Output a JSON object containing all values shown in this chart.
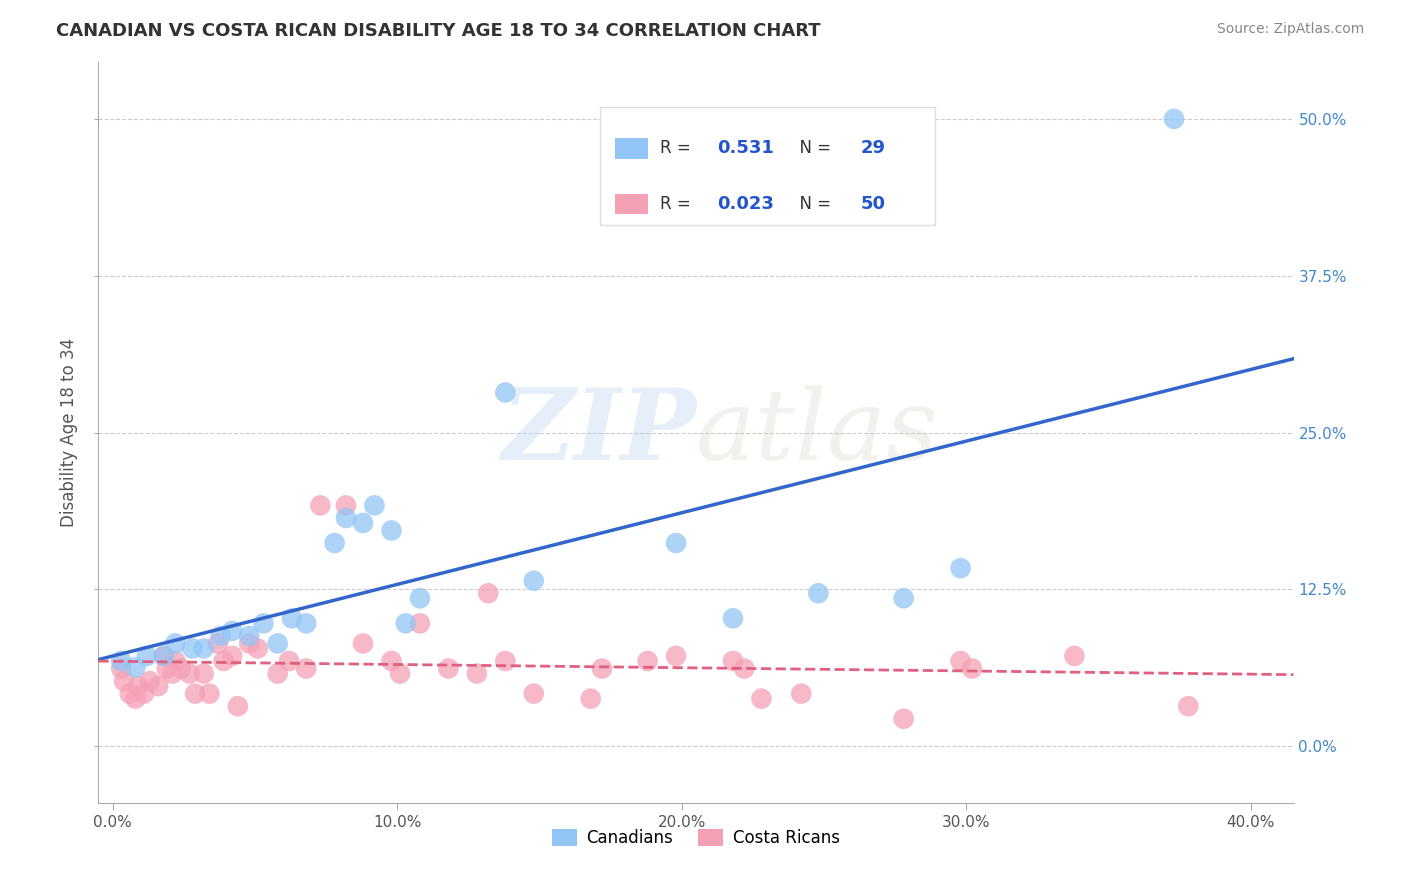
{
  "title": "CANADIAN VS COSTA RICAN DISABILITY AGE 18 TO 34 CORRELATION CHART",
  "source": "Source: ZipAtlas.com",
  "ylabel": "Disability Age 18 to 34",
  "xlabel_ticks": [
    "0.0%",
    "10.0%",
    "20.0%",
    "30.0%",
    "40.0%"
  ],
  "xlabel_vals": [
    0.0,
    0.1,
    0.2,
    0.3,
    0.4
  ],
  "ylabel_ticks": [
    "0.0%",
    "12.5%",
    "25.0%",
    "37.5%",
    "50.0%"
  ],
  "ylabel_vals": [
    0.0,
    0.125,
    0.25,
    0.375,
    0.5
  ],
  "xlim": [
    -0.005,
    0.415
  ],
  "ylim": [
    -0.045,
    0.545
  ],
  "canadian_R": 0.531,
  "canadian_N": 29,
  "costarican_R": 0.023,
  "costarican_N": 50,
  "canadian_color": "#92C5F5",
  "costarican_color": "#F5A0B5",
  "canadian_line_color": "#3366CC",
  "costarican_line_color": "#E06080",
  "background_color": "#FFFFFF",
  "grid_color": "#CCCCCC",
  "canadian_x": [
    0.003,
    0.008,
    0.012,
    0.018,
    0.022,
    0.028,
    0.032,
    0.038,
    0.042,
    0.048,
    0.053,
    0.058,
    0.063,
    0.068,
    0.078,
    0.082,
    0.088,
    0.092,
    0.098,
    0.103,
    0.108,
    0.138,
    0.148,
    0.198,
    0.218,
    0.248,
    0.278,
    0.298,
    0.373
  ],
  "canadian_y": [
    0.068,
    0.063,
    0.072,
    0.072,
    0.082,
    0.078,
    0.078,
    0.088,
    0.092,
    0.088,
    0.098,
    0.082,
    0.102,
    0.098,
    0.162,
    0.182,
    0.178,
    0.192,
    0.172,
    0.098,
    0.118,
    0.282,
    0.132,
    0.162,
    0.102,
    0.122,
    0.118,
    0.142,
    0.5
  ],
  "costarican_x": [
    0.003,
    0.004,
    0.006,
    0.008,
    0.009,
    0.011,
    0.013,
    0.016,
    0.018,
    0.019,
    0.021,
    0.022,
    0.024,
    0.027,
    0.029,
    0.032,
    0.034,
    0.037,
    0.039,
    0.042,
    0.044,
    0.048,
    0.051,
    0.058,
    0.062,
    0.068,
    0.073,
    0.082,
    0.088,
    0.098,
    0.101,
    0.108,
    0.118,
    0.128,
    0.132,
    0.138,
    0.148,
    0.168,
    0.172,
    0.188,
    0.198,
    0.218,
    0.222,
    0.228,
    0.242,
    0.278,
    0.298,
    0.302,
    0.338,
    0.378
  ],
  "costarican_y": [
    0.062,
    0.052,
    0.042,
    0.038,
    0.048,
    0.042,
    0.052,
    0.048,
    0.072,
    0.062,
    0.058,
    0.068,
    0.062,
    0.058,
    0.042,
    0.058,
    0.042,
    0.082,
    0.068,
    0.072,
    0.032,
    0.082,
    0.078,
    0.058,
    0.068,
    0.062,
    0.192,
    0.192,
    0.082,
    0.068,
    0.058,
    0.098,
    0.062,
    0.058,
    0.122,
    0.068,
    0.042,
    0.038,
    0.062,
    0.068,
    0.072,
    0.068,
    0.062,
    0.038,
    0.042,
    0.022,
    0.068,
    0.062,
    0.072,
    0.032
  ],
  "watermark_zip": "ZIP",
  "watermark_atlas": "atlas",
  "legend_label_canadian": "R =  0.531   N = 29",
  "legend_label_costarican": "R =  0.023   N = 50",
  "bottom_legend_canadians": "Canadians",
  "bottom_legend_costaricans": "Costa Ricans"
}
